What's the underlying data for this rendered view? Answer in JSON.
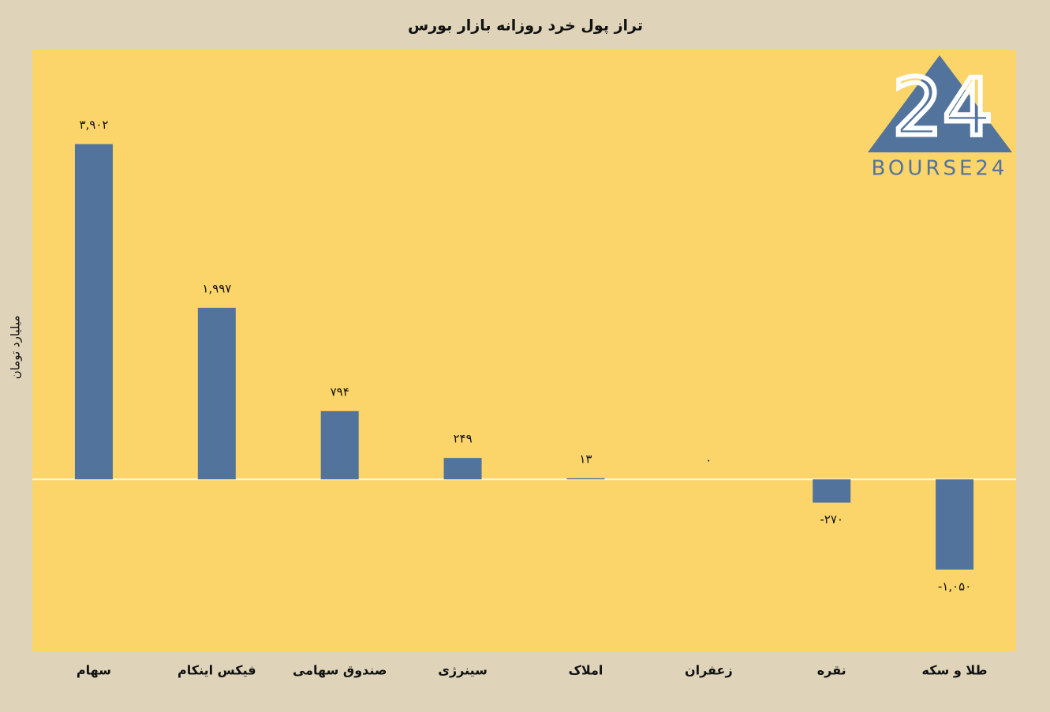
{
  "chart_data": {
    "type": "bar",
    "title": "تراز پول خرد روزانه بازار بورس",
    "y_label": "میلیارد تومان",
    "categories": [
      "سهام",
      "فیکس اینکام",
      "صندوق سهامی",
      "سینرژی",
      "املاک",
      "زعفران",
      "نقره",
      "طلا و سکه"
    ],
    "values": [
      3902,
      1997,
      794,
      249,
      13,
      0,
      -270,
      -1050
    ],
    "value_labels": [
      "۳,۹۰۲",
      "۱,۹۹۷",
      "۷۹۴",
      "۲۴۹",
      "۱۳",
      "۰",
      "-۲۷۰",
      "-۱,۰۵۰"
    ],
    "color": "#52739b",
    "ylim": [
      -2000,
      5000
    ],
    "grid": false
  },
  "logo": {
    "mark": "24",
    "text": "BOURSE24"
  }
}
